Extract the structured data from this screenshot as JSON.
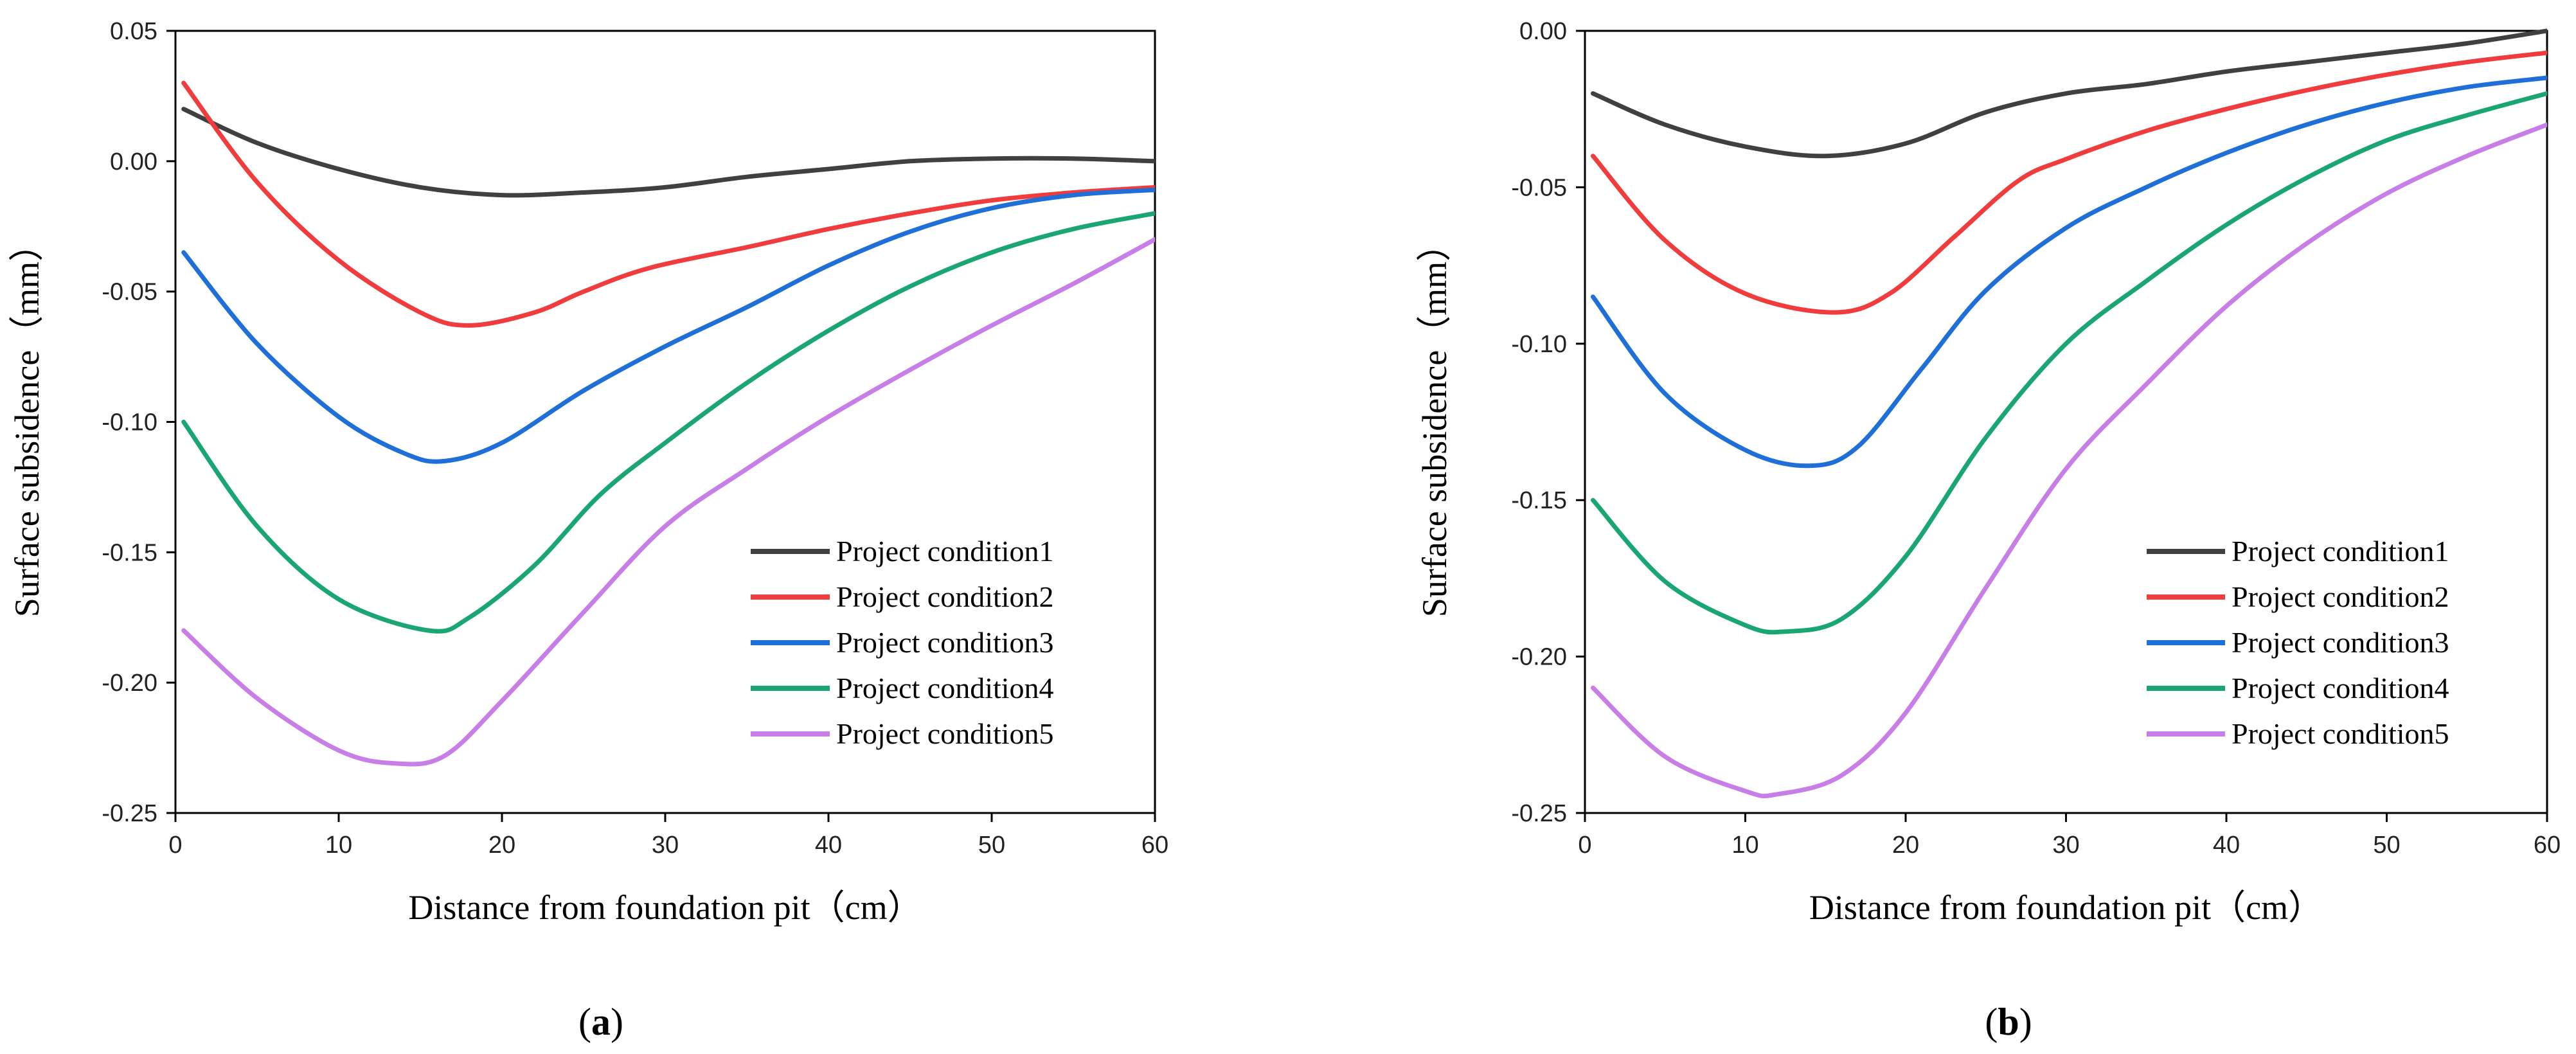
{
  "figure": {
    "panel_labels": [
      "(a)",
      "(b)"
    ]
  },
  "chart_data": [
    {
      "type": "line",
      "panel": "(a)",
      "xlabel": "Distance from foundation pit（cm）",
      "ylabel": "Surface subsidence（mm）",
      "xlim": [
        0,
        60
      ],
      "ylim": [
        -0.25,
        0.05
      ],
      "xticks": [
        0,
        10,
        20,
        30,
        40,
        50,
        60
      ],
      "yticks": [
        0.05,
        0.0,
        -0.05,
        -0.1,
        -0.15,
        -0.2,
        -0.25
      ],
      "ytick_labels": [
        "0.05",
        "0.00",
        "-0.05",
        "-0.10",
        "-0.15",
        "-0.20",
        "-0.25"
      ],
      "legend_position": "lower-right",
      "series": [
        {
          "name": "Project condition1",
          "color": "#404040",
          "points": [
            [
              0.5,
              0.02
            ],
            [
              5,
              0.007
            ],
            [
              10,
              -0.003
            ],
            [
              15,
              -0.01
            ],
            [
              20,
              -0.013
            ],
            [
              25,
              -0.012
            ],
            [
              30,
              -0.01
            ],
            [
              35,
              -0.006
            ],
            [
              40,
              -0.003
            ],
            [
              45,
              0.0
            ],
            [
              50,
              0.001
            ],
            [
              55,
              0.001
            ],
            [
              60,
              0.0
            ]
          ]
        },
        {
          "name": "Project condition2",
          "color": "#f03c3c",
          "points": [
            [
              0.5,
              0.03
            ],
            [
              5,
              -0.008
            ],
            [
              10,
              -0.038
            ],
            [
              15,
              -0.058
            ],
            [
              18,
              -0.063
            ],
            [
              22,
              -0.058
            ],
            [
              25,
              -0.05
            ],
            [
              29,
              -0.041
            ],
            [
              35,
              -0.033
            ],
            [
              40,
              -0.026
            ],
            [
              45,
              -0.02
            ],
            [
              50,
              -0.015
            ],
            [
              55,
              -0.012
            ],
            [
              60,
              -0.01
            ]
          ]
        },
        {
          "name": "Project condition3",
          "color": "#1f6fd8",
          "points": [
            [
              0.5,
              -0.035
            ],
            [
              5,
              -0.07
            ],
            [
              10,
              -0.098
            ],
            [
              14,
              -0.112
            ],
            [
              16.5,
              -0.115
            ],
            [
              20,
              -0.108
            ],
            [
              25,
              -0.088
            ],
            [
              30,
              -0.071
            ],
            [
              35,
              -0.056
            ],
            [
              40,
              -0.04
            ],
            [
              45,
              -0.027
            ],
            [
              50,
              -0.018
            ],
            [
              55,
              -0.013
            ],
            [
              60,
              -0.011
            ]
          ]
        },
        {
          "name": "Project condition4",
          "color": "#19a673",
          "points": [
            [
              0.5,
              -0.1
            ],
            [
              5,
              -0.14
            ],
            [
              10,
              -0.168
            ],
            [
              15.5,
              -0.18
            ],
            [
              18,
              -0.175
            ],
            [
              22,
              -0.155
            ],
            [
              26,
              -0.128
            ],
            [
              30,
              -0.108
            ],
            [
              35,
              -0.085
            ],
            [
              40,
              -0.065
            ],
            [
              45,
              -0.048
            ],
            [
              50,
              -0.035
            ],
            [
              55,
              -0.026
            ],
            [
              60,
              -0.02
            ]
          ]
        },
        {
          "name": "Project condition5",
          "color": "#c77ee6",
          "points": [
            [
              0.5,
              -0.18
            ],
            [
              5,
              -0.206
            ],
            [
              10,
              -0.226
            ],
            [
              13.5,
              -0.231
            ],
            [
              16.5,
              -0.228
            ],
            [
              20,
              -0.207
            ],
            [
              25,
              -0.173
            ],
            [
              30,
              -0.14
            ],
            [
              35,
              -0.118
            ],
            [
              40,
              -0.098
            ],
            [
              45,
              -0.08
            ],
            [
              50,
              -0.063
            ],
            [
              55,
              -0.047
            ],
            [
              60,
              -0.03
            ]
          ]
        }
      ]
    },
    {
      "type": "line",
      "panel": "(b)",
      "xlabel": "Distance from foundation pit（cm）",
      "ylabel": "Surface subsidence（mm）",
      "xlim": [
        0,
        60
      ],
      "ylim": [
        -0.25,
        0.0
      ],
      "xticks": [
        0,
        10,
        20,
        30,
        40,
        50,
        60
      ],
      "yticks": [
        0.0,
        -0.05,
        -0.1,
        -0.15,
        -0.2,
        -0.25
      ],
      "ytick_labels": [
        "0.00",
        "-0.05",
        "-0.10",
        "-0.15",
        "-0.20",
        "-0.25"
      ],
      "legend_position": "lower-right",
      "series": [
        {
          "name": "Project condition1",
          "color": "#404040",
          "points": [
            [
              0.5,
              -0.02
            ],
            [
              5,
              -0.03
            ],
            [
              10,
              -0.037
            ],
            [
              15,
              -0.04
            ],
            [
              20,
              -0.036
            ],
            [
              25,
              -0.026
            ],
            [
              30,
              -0.02
            ],
            [
              35,
              -0.017
            ],
            [
              40,
              -0.013
            ],
            [
              45,
              -0.01
            ],
            [
              50,
              -0.007
            ],
            [
              55,
              -0.004
            ],
            [
              60,
              0.0
            ]
          ]
        },
        {
          "name": "Project condition2",
          "color": "#f03c3c",
          "points": [
            [
              0.5,
              -0.04
            ],
            [
              5,
              -0.067
            ],
            [
              10,
              -0.084
            ],
            [
              15.5,
              -0.09
            ],
            [
              19,
              -0.084
            ],
            [
              23,
              -0.066
            ],
            [
              27,
              -0.048
            ],
            [
              30,
              -0.041
            ],
            [
              35,
              -0.032
            ],
            [
              40,
              -0.025
            ],
            [
              45,
              -0.019
            ],
            [
              50,
              -0.014
            ],
            [
              55,
              -0.01
            ],
            [
              60,
              -0.007
            ]
          ]
        },
        {
          "name": "Project condition3",
          "color": "#1f6fd8",
          "points": [
            [
              0.5,
              -0.085
            ],
            [
              5,
              -0.116
            ],
            [
              10,
              -0.134
            ],
            [
              14,
              -0.139
            ],
            [
              17,
              -0.133
            ],
            [
              21,
              -0.108
            ],
            [
              25,
              -0.083
            ],
            [
              30,
              -0.063
            ],
            [
              35,
              -0.05
            ],
            [
              40,
              -0.039
            ],
            [
              45,
              -0.03
            ],
            [
              50,
              -0.023
            ],
            [
              55,
              -0.018
            ],
            [
              60,
              -0.015
            ]
          ]
        },
        {
          "name": "Project condition4",
          "color": "#19a673",
          "points": [
            [
              0.5,
              -0.15
            ],
            [
              5,
              -0.176
            ],
            [
              10,
              -0.19
            ],
            [
              12.5,
              -0.192
            ],
            [
              16,
              -0.188
            ],
            [
              20,
              -0.168
            ],
            [
              25,
              -0.13
            ],
            [
              30,
              -0.1
            ],
            [
              35,
              -0.08
            ],
            [
              40,
              -0.062
            ],
            [
              45,
              -0.047
            ],
            [
              50,
              -0.035
            ],
            [
              55,
              -0.027
            ],
            [
              60,
              -0.02
            ]
          ]
        },
        {
          "name": "Project condition5",
          "color": "#c77ee6",
          "points": [
            [
              0.5,
              -0.21
            ],
            [
              5,
              -0.232
            ],
            [
              10,
              -0.243
            ],
            [
              12,
              -0.244
            ],
            [
              16,
              -0.238
            ],
            [
              20,
              -0.218
            ],
            [
              25,
              -0.178
            ],
            [
              30,
              -0.14
            ],
            [
              35,
              -0.113
            ],
            [
              40,
              -0.088
            ],
            [
              45,
              -0.068
            ],
            [
              50,
              -0.052
            ],
            [
              55,
              -0.04
            ],
            [
              60,
              -0.03
            ]
          ]
        }
      ]
    }
  ]
}
